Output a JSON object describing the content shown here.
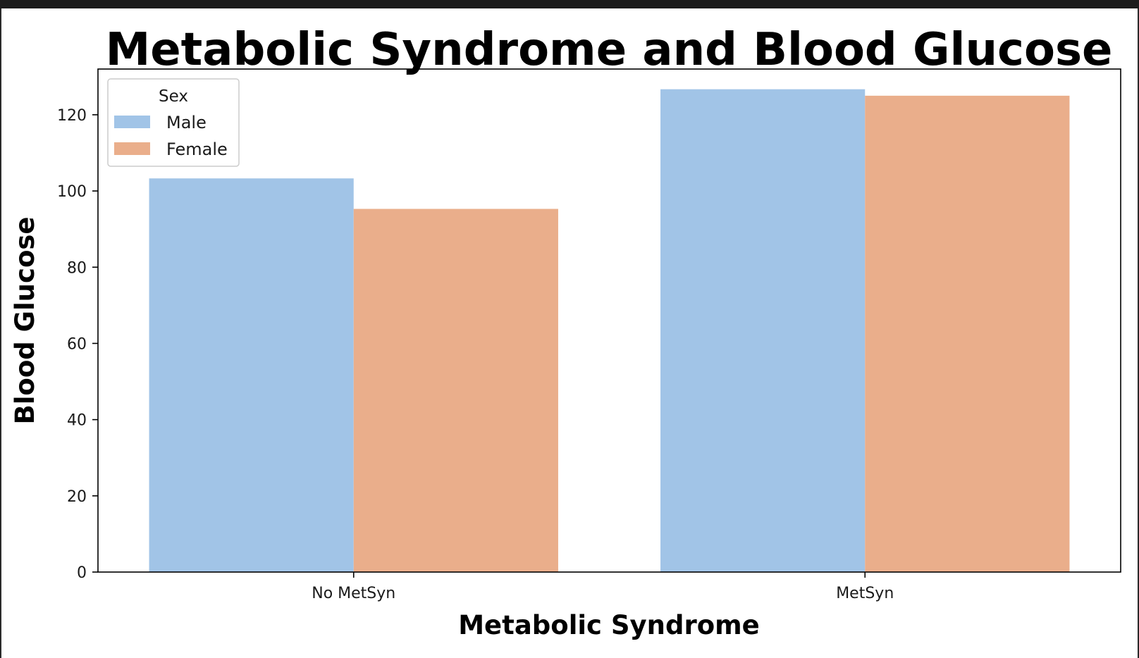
{
  "chart_data": {
    "type": "bar",
    "title": "Metabolic Syndrome and Blood Glucose",
    "xlabel": "Metabolic Syndrome",
    "ylabel": "Blood Glucose",
    "categories": [
      "No MetSyn",
      "MetSyn"
    ],
    "series": [
      {
        "name": "Male",
        "values": [
          103.3,
          126.7
        ],
        "color": "#a1c4e7"
      },
      {
        "name": "Female",
        "values": [
          95.3,
          125.0
        ],
        "color": "#eaae8b"
      }
    ],
    "ylim": [
      0,
      132
    ],
    "yticks": [
      0,
      20,
      40,
      60,
      80,
      100,
      120
    ],
    "grid": false,
    "legend": {
      "title": "Sex",
      "placement": "top-left"
    }
  }
}
